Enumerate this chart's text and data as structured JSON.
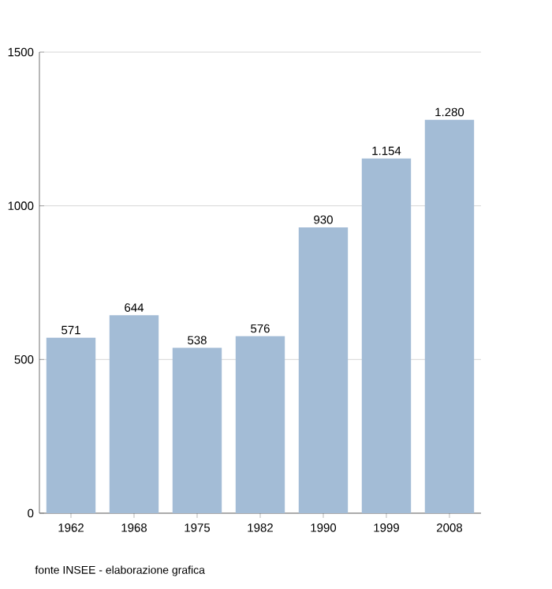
{
  "chart_data": {
    "type": "bar",
    "categories": [
      "1962",
      "1968",
      "1975",
      "1982",
      "1990",
      "1999",
      "2008"
    ],
    "values": [
      571,
      644,
      538,
      576,
      930,
      1154,
      1280
    ],
    "value_labels": [
      "571",
      "644",
      "538",
      "576",
      "930",
      "1.154",
      "1.280"
    ],
    "color": "#a3bcd6",
    "ylim": [
      0,
      1500
    ],
    "yticks": [
      0,
      500,
      1000,
      1500
    ],
    "grid": "y",
    "annotations": [
      "fonte INSEE - elaborazione grafica"
    ]
  }
}
